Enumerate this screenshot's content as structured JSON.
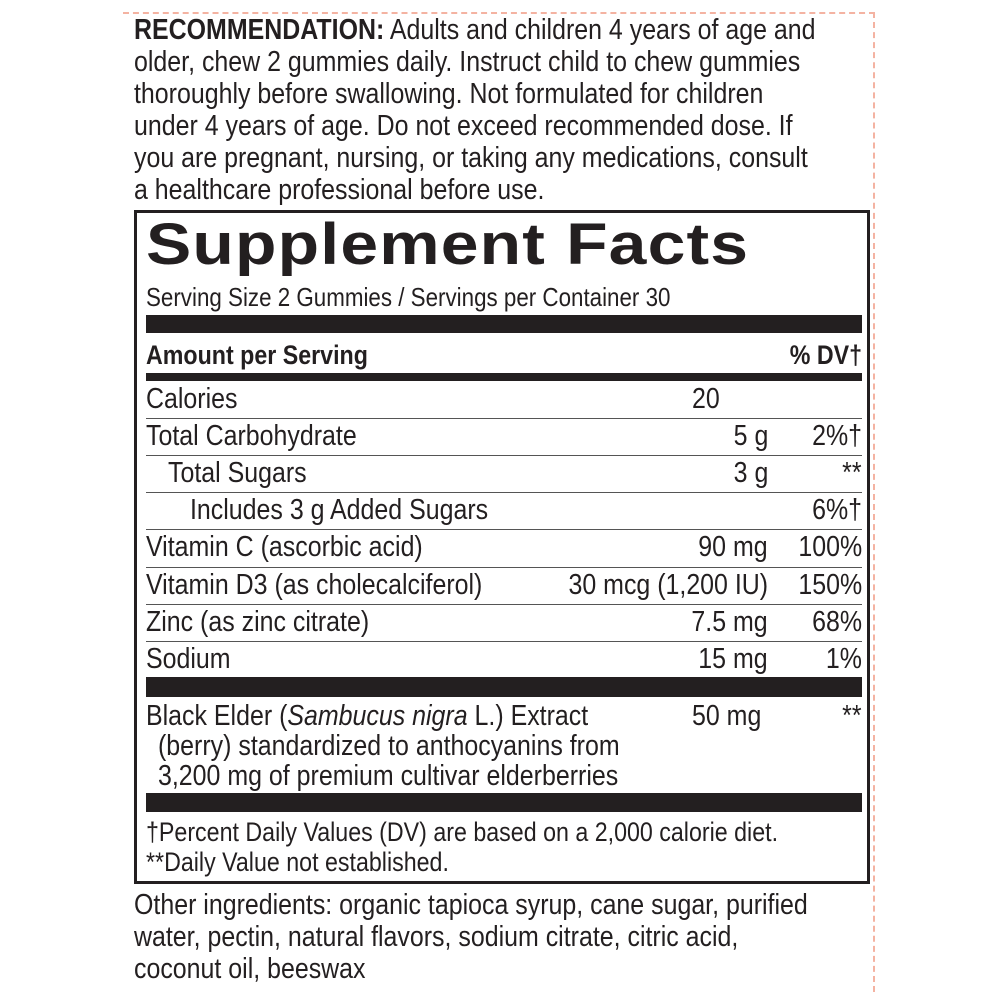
{
  "recommendation": {
    "label": "RECOMMENDATION:",
    "lines": [
      " Adults and children 4 years of age and",
      "older, chew 2 gummies daily. Instruct child to chew gummies",
      "thoroughly before swallowing. Not formulated for children",
      "under 4 years of age. Do not exceed recommended dose. If",
      "you are pregnant, nursing, or taking any medications, consult",
      "a healthcare professional before use."
    ]
  },
  "facts": {
    "title": "Supplement Facts",
    "serving": "Serving Size 2 Gummies / Servings per Container 30",
    "amount_header": "Amount per Serving",
    "dv_header": "% DV†",
    "rows": [
      {
        "name": "Calories",
        "amount": "20",
        "dv": ""
      },
      {
        "name": "Total Carbohydrate",
        "amount": "5 g",
        "dv": "2%†"
      },
      {
        "name": "Total Sugars",
        "amount": "3 g",
        "dv": "**"
      },
      {
        "name": "Includes 3 g Added Sugars",
        "amount": "",
        "dv": "6%†"
      },
      {
        "name": "Vitamin C (ascorbic acid)",
        "amount": "90 mg",
        "dv": "100%"
      },
      {
        "name": "Vitamin D3 (as cholecalciferol)",
        "amount": "30 mcg (1,200 IU)",
        "dv": "150%"
      },
      {
        "name": "Zinc (as zinc citrate)",
        "amount": "7.5 mg",
        "dv": "68%"
      },
      {
        "name": "Sodium",
        "amount": "15 mg",
        "dv": "1%"
      }
    ],
    "elder": {
      "pre": "Black Elder (",
      "italic": "Sambucus nigra",
      "post": " L.) Extract",
      "line2": "(berry) standardized to anthocyanins from",
      "line3": "3,200 mg of premium cultivar elderberries",
      "amount": "50 mg",
      "dv": "**"
    },
    "footnotes": [
      "†Percent Daily Values (DV) are based on a 2,000 calorie diet.",
      "**Daily Value not established."
    ]
  },
  "other_ingredients": [
    "Other ingredients: organic tapioca syrup, cane sugar, purified",
    "water, pectin, natural flavors, sodium citrate, citric acid,",
    "coconut oil, beeswax"
  ],
  "colors": {
    "ink": "#231f20",
    "dash": "#f4b3a2"
  }
}
